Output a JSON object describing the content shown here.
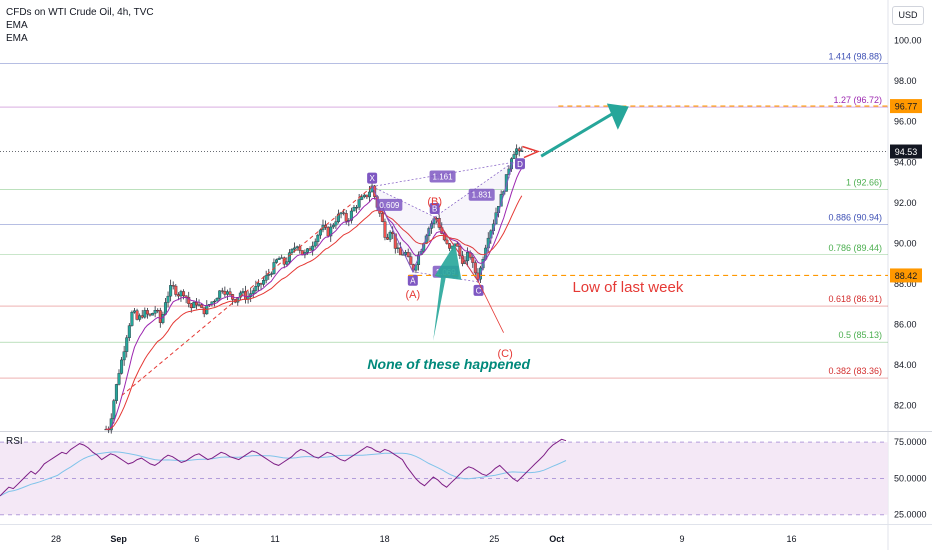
{
  "header": {
    "title": "CFDs on WTI Crude Oil, 4h, TVC",
    "indicator1": "EMA",
    "indicator2": "EMA"
  },
  "currency_button": "USD",
  "rsi_label": "RSI",
  "colors": {
    "up_candle": "#26a69a",
    "down_candle": "#ef5350",
    "wick": "#2a2e39",
    "ema_fast": "#9c27b0",
    "ema_slow": "#e53935",
    "rsi_line": "#7e1f86",
    "rsi_ma": "#80c4ea",
    "rsi_band": "#f3e5f5",
    "fib_gray": "#9e9e9e",
    "fib_green": "#4caf50",
    "fib_blue": "#3f51b5",
    "fib_red": "#d32f2f",
    "fib_purple": "#9c27b0",
    "orange": "#ff9800",
    "teal_arrow": "#26a69a",
    "pattern_purple": "#7e57c2",
    "annotation_red": "#e53935",
    "annotation_teal": "#00897b"
  },
  "chart_data": {
    "type": "candlestick",
    "symbol": "CFDs on WTI Crude Oil",
    "interval": "4h",
    "y_axis": {
      "range": [
        80.8,
        102.0
      ],
      "ticks": [
        82.0,
        84.0,
        86.0,
        88.0,
        90.0,
        92.0,
        94.0,
        96.0,
        98.0,
        100.0
      ],
      "tick_labels": [
        "82.00",
        "84.00",
        "86.00",
        "88.00",
        "90.00",
        "92.00",
        "94.00",
        "96.00",
        "98.00",
        "100.00"
      ]
    },
    "x_axis": {
      "tick_labels": [
        "28",
        "Sep",
        "6",
        "11",
        "18",
        "25",
        "Oct",
        "9",
        "16"
      ],
      "tick_day_index": [
        0,
        4,
        9,
        14,
        21,
        28,
        32,
        40,
        47
      ]
    },
    "last_price": {
      "value": 94.53,
      "label": "94.53"
    },
    "price_tags": [
      {
        "value": 96.77,
        "label": "96.77",
        "color": "#ff9800"
      },
      {
        "value": 88.42,
        "label": "88.42",
        "color": "#ff9800"
      }
    ],
    "fib_levels": [
      {
        "ratio_label": "1.414 (98.88)",
        "price": 98.88,
        "color": "#3f51b5"
      },
      {
        "ratio_label": "1.27 (96.72)",
        "price": 96.72,
        "color": "#9c27b0"
      },
      {
        "ratio_label": "1 (92.66)",
        "price": 92.66,
        "color": "#4caf50"
      },
      {
        "ratio_label": "0.886 (90.94)",
        "price": 90.94,
        "color": "#3f51b5"
      },
      {
        "ratio_label": "0.786 (89.44)",
        "price": 89.44,
        "color": "#4caf50"
      },
      {
        "ratio_label": "0.618 (86.91)",
        "price": 86.91,
        "color": "#d32f2f"
      },
      {
        "ratio_label": "0.5 (85.13)",
        "price": 85.13,
        "color": "#4caf50"
      },
      {
        "ratio_label": "0.382 (83.36)",
        "price": 83.36,
        "color": "#d32f2f"
      }
    ],
    "pattern_points": [
      {
        "label": "X",
        "day": 20.2,
        "price": 92.8
      },
      {
        "label": "A",
        "day": 22.8,
        "price": 88.6
      },
      {
        "label": "B",
        "day": 24.2,
        "price": 91.3
      },
      {
        "label": "C",
        "day": 27.0,
        "price": 88.1
      },
      {
        "label": "D",
        "day": 29.2,
        "price": 94.0
      }
    ],
    "pattern_ratios": [
      {
        "label": "0.609",
        "day": 21.3,
        "price": 91.9
      },
      {
        "label": "1.161",
        "day": 24.7,
        "price": 93.3
      },
      {
        "label": "1.069",
        "day": 24.9,
        "price": 88.6
      },
      {
        "label": "1.831",
        "day": 27.2,
        "price": 92.4
      }
    ],
    "wave_labels": [
      {
        "label": "(B)",
        "day": 24.2,
        "price": 91.9
      },
      {
        "label": "(A)",
        "day": 22.8,
        "price": 87.3
      },
      {
        "label": "(C)",
        "day": 28.7,
        "price": 84.4
      }
    ],
    "annotations": [
      {
        "text": "Low of last week",
        "day": 33.0,
        "price": 87.6
      },
      {
        "text": "None of these happened",
        "day": 19.9,
        "price": 83.8
      }
    ],
    "rsi": {
      "y_range": [
        20,
        82
      ],
      "ticks": [
        25.0,
        50.0,
        75.0
      ],
      "tick_labels": [
        "25.0000",
        "50.0000",
        "75.0000"
      ],
      "band": [
        30,
        70
      ],
      "values": [
        38,
        41,
        44,
        43,
        46,
        49,
        52,
        55,
        53,
        56,
        60,
        62,
        64,
        66,
        68,
        67,
        70,
        72,
        74,
        73,
        71,
        68,
        66,
        63,
        65,
        67,
        66,
        64,
        62,
        60,
        61,
        63,
        64,
        62,
        60,
        59,
        61,
        64,
        66,
        65,
        63,
        61,
        62,
        64,
        66,
        67,
        65,
        63,
        64,
        66,
        68,
        67,
        65,
        64,
        63,
        65,
        67,
        69,
        68,
        66,
        64,
        62,
        60,
        59,
        61,
        63,
        65,
        68,
        70,
        69,
        67,
        65,
        64,
        66,
        68,
        67,
        65,
        63,
        62,
        64,
        66,
        68,
        70,
        72,
        71,
        69,
        68,
        70,
        69,
        67,
        65,
        63,
        58,
        54,
        50,
        47,
        45,
        48,
        51,
        49,
        46,
        44,
        47,
        50,
        53,
        56,
        58,
        57,
        55,
        53,
        52,
        54,
        57,
        59,
        56,
        53,
        50,
        48,
        51,
        54,
        57,
        60,
        63,
        66,
        70,
        73,
        75,
        77,
        76
      ]
    },
    "price_path": [
      [
        0.0,
        80.6
      ],
      [
        2.0,
        80.5
      ],
      [
        3.4,
        80.9
      ],
      [
        3.7,
        82.3
      ],
      [
        4.0,
        83.6
      ],
      [
        4.3,
        84.6
      ],
      [
        4.6,
        85.8
      ],
      [
        4.9,
        86.7
      ],
      [
        5.2,
        86.2
      ],
      [
        5.6,
        86.6
      ],
      [
        6.0,
        86.4
      ],
      [
        6.4,
        86.8
      ],
      [
        6.7,
        86.0
      ],
      [
        7.0,
        87.2
      ],
      [
        7.4,
        87.9
      ],
      [
        7.8,
        87.5
      ],
      [
        8.2,
        87.6
      ],
      [
        8.6,
        86.8
      ],
      [
        9.0,
        87.1
      ],
      [
        9.4,
        86.6
      ],
      [
        9.8,
        87.0
      ],
      [
        10.2,
        87.3
      ],
      [
        10.6,
        87.8
      ],
      [
        11.0,
        87.5
      ],
      [
        11.4,
        87.2
      ],
      [
        11.8,
        87.6
      ],
      [
        12.2,
        87.3
      ],
      [
        12.6,
        87.7
      ],
      [
        13.0,
        87.9
      ],
      [
        13.4,
        88.3
      ],
      [
        13.8,
        88.7
      ],
      [
        14.2,
        89.3
      ],
      [
        14.6,
        89.0
      ],
      [
        15.0,
        89.5
      ],
      [
        15.4,
        90.0
      ],
      [
        15.8,
        89.4
      ],
      [
        16.2,
        89.7
      ],
      [
        16.6,
        90.3
      ],
      [
        17.0,
        90.8
      ],
      [
        17.4,
        90.5
      ],
      [
        17.8,
        91.1
      ],
      [
        18.2,
        91.5
      ],
      [
        18.6,
        91.1
      ],
      [
        19.0,
        91.7
      ],
      [
        19.4,
        92.1
      ],
      [
        19.8,
        92.3
      ],
      [
        20.2,
        92.8
      ],
      [
        20.5,
        91.9
      ],
      [
        20.8,
        91.2
      ],
      [
        21.1,
        90.2
      ],
      [
        21.4,
        90.8
      ],
      [
        21.7,
        89.8
      ],
      [
        22.0,
        89.4
      ],
      [
        22.3,
        89.6
      ],
      [
        22.6,
        89.0
      ],
      [
        22.8,
        88.7
      ],
      [
        23.1,
        89.3
      ],
      [
        23.4,
        89.9
      ],
      [
        23.7,
        90.6
      ],
      [
        24.0,
        91.0
      ],
      [
        24.3,
        91.3
      ],
      [
        24.6,
        90.6
      ],
      [
        24.9,
        90.0
      ],
      [
        25.2,
        89.6
      ],
      [
        25.5,
        90.1
      ],
      [
        25.8,
        89.4
      ],
      [
        26.1,
        89.0
      ],
      [
        26.4,
        89.6
      ],
      [
        26.7,
        88.7
      ],
      [
        27.0,
        88.3
      ],
      [
        27.3,
        89.4
      ],
      [
        27.6,
        90.4
      ],
      [
        27.9,
        90.9
      ],
      [
        28.2,
        91.8
      ],
      [
        28.5,
        92.4
      ],
      [
        28.8,
        93.3
      ],
      [
        29.1,
        94.3
      ],
      [
        29.4,
        94.7
      ],
      [
        29.6,
        94.4
      ],
      [
        29.8,
        94.53
      ]
    ]
  }
}
